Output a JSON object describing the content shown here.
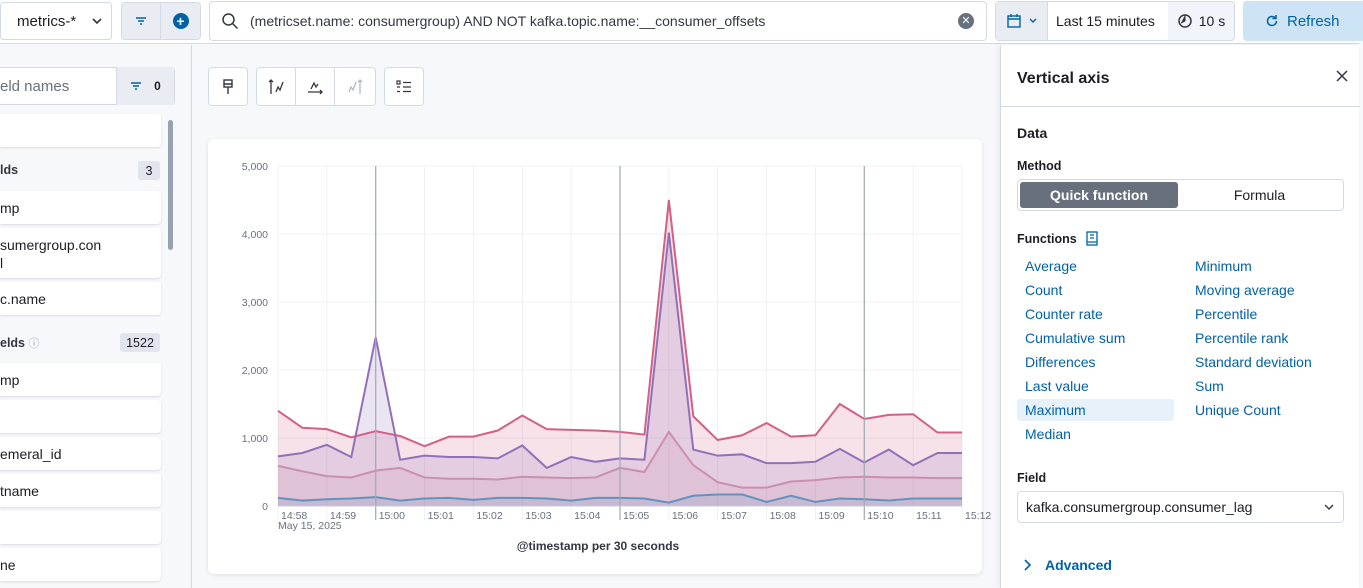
{
  "topbar": {
    "dataview_label": "metrics-*",
    "query": "(metricset.name: consumergroup) AND NOT kafka.topic.name:__consumer_offsets",
    "time_range": "Last 15 minutes",
    "refresh_interval": "10 s",
    "refresh_label": "Refresh"
  },
  "sidebar": {
    "search_placeholder": "eld names",
    "filter_count": "0",
    "group1_label": "lds",
    "group1_count": "3",
    "group1_items": [
      "mp",
      "sumergroup.con",
      "l",
      "c.name"
    ],
    "group2_label": "elds",
    "group2_count": "1522",
    "group2_items": [
      "mp",
      "",
      "emeral_id",
      "tname",
      "",
      "ne"
    ]
  },
  "chart_data": {
    "type": "area",
    "x": [
      "14:58",
      "14:58:30",
      "14:59",
      "14:59:30",
      "15:00",
      "15:00:30",
      "15:01",
      "15:01:30",
      "15:02",
      "15:02:30",
      "15:03",
      "15:03:30",
      "15:04",
      "15:04:30",
      "15:05",
      "15:05:30",
      "15:06",
      "15:06:30",
      "15:07",
      "15:07:30",
      "15:08",
      "15:08:30",
      "15:09",
      "15:09:30",
      "15:10",
      "15:10:30",
      "15:11",
      "15:11:30",
      "15:12"
    ],
    "xticks": [
      "14:58",
      "14:59",
      "15:00",
      "15:01",
      "15:02",
      "15:03",
      "15:04",
      "15:05",
      "15:06",
      "15:07",
      "15:08",
      "15:09",
      "15:10",
      "15:11",
      "15:12"
    ],
    "date_label": "May 15, 2025",
    "xlabel": "@timestamp per 30 seconds",
    "ylim": [
      0,
      5000
    ],
    "yticks": [
      "0",
      "1,000",
      "2,000",
      "3,000",
      "4,000",
      "5,000"
    ],
    "series": [
      {
        "color": "#d36086",
        "values": [
          1400,
          1150,
          1130,
          1010,
          1100,
          1030,
          880,
          1020,
          1020,
          1110,
          1330,
          1130,
          1120,
          1110,
          1090,
          1050,
          4500,
          1320,
          970,
          1040,
          1220,
          1020,
          1040,
          1500,
          1280,
          1340,
          1350,
          1080,
          1080
        ]
      },
      {
        "color": "#9170b8",
        "values": [
          730,
          780,
          900,
          720,
          2480,
          680,
          740,
          720,
          720,
          700,
          890,
          560,
          720,
          650,
          700,
          680,
          4020,
          830,
          740,
          760,
          630,
          630,
          650,
          840,
          640,
          830,
          600,
          780,
          780
        ]
      },
      {
        "color": "#ca8eae",
        "values": [
          590,
          510,
          440,
          420,
          520,
          560,
          420,
          400,
          400,
          390,
          430,
          420,
          410,
          420,
          560,
          500,
          1090,
          600,
          350,
          270,
          270,
          360,
          380,
          420,
          430,
          420,
          420,
          410,
          410
        ]
      },
      {
        "color": "#6092c0",
        "values": [
          120,
          80,
          100,
          110,
          130,
          80,
          110,
          120,
          90,
          120,
          120,
          110,
          80,
          120,
          120,
          110,
          50,
          150,
          170,
          170,
          60,
          150,
          60,
          110,
          100,
          80,
          110,
          110,
          110
        ]
      }
    ],
    "markers": [
      "15:00",
      "15:05",
      "15:10"
    ]
  },
  "flyout": {
    "title": "Vertical axis",
    "data_heading": "Data",
    "method_label": "Method",
    "method_active": "Quick function",
    "method_other": "Formula",
    "functions_label": "Functions",
    "functions_left": [
      "Average",
      "Count",
      "Counter rate",
      "Cumulative sum",
      "Differences",
      "Last value",
      "Maximum",
      "Median"
    ],
    "functions_right": [
      "Minimum",
      "Moving average",
      "Percentile",
      "Percentile rank",
      "Standard deviation",
      "Sum",
      "Unique Count"
    ],
    "selected_function": "Maximum",
    "field_label": "Field",
    "field_value": "kafka.consumergroup.consumer_lag",
    "advanced_label": "Advanced"
  }
}
